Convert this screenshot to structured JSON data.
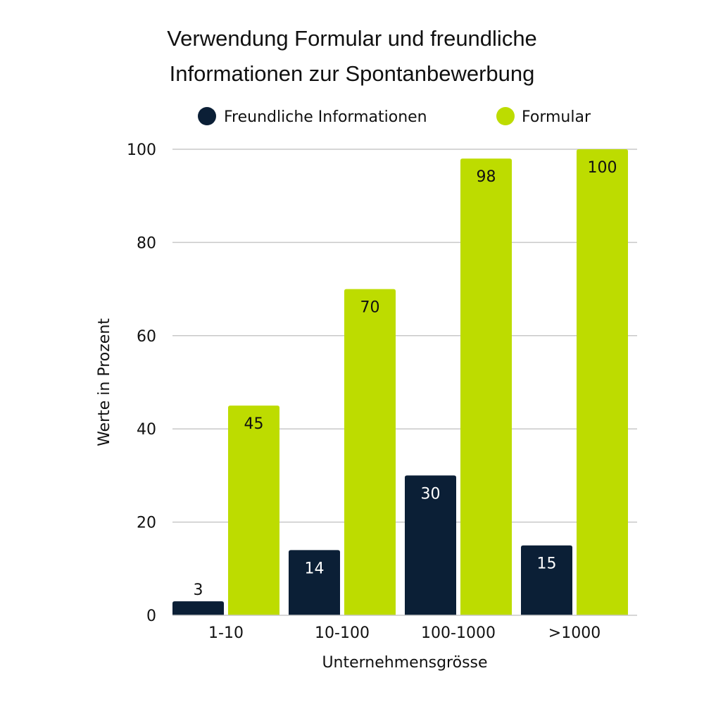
{
  "chart_data": {
    "type": "bar",
    "title_lines": [
      "Verwendung Formular und freundliche",
      "Informationen zur Spontanbewerbung"
    ],
    "xlabel": "Unternehmensgrösse",
    "ylabel": "Werte in Prozent",
    "categories": [
      "1-10",
      "10-100",
      "100-1000",
      ">1000"
    ],
    "ylim": [
      0,
      100
    ],
    "yticks": [
      0,
      20,
      40,
      60,
      80,
      100
    ],
    "grid": true,
    "legend_position": "top",
    "series": [
      {
        "name": "Freundliche Informationen",
        "color": "#0b1f36",
        "label_color": "#ffffff",
        "values": [
          3,
          14,
          30,
          15
        ]
      },
      {
        "name": "Formular",
        "color": "#bddc00",
        "label_color": "#111111",
        "values": [
          45,
          70,
          98,
          100
        ]
      }
    ]
  }
}
